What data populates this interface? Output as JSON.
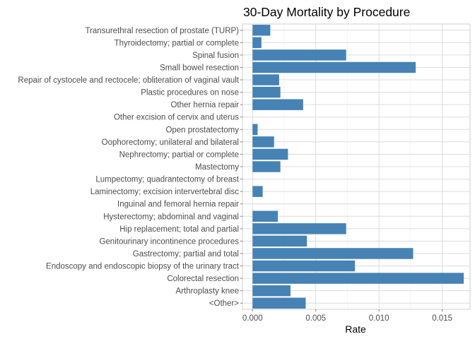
{
  "chart_data": {
    "type": "bar",
    "orientation": "horizontal",
    "title": "30-Day Mortality by Procedure",
    "xlabel": "Rate",
    "ylabel": "",
    "xlim": [
      -0.0008,
      0.0172
    ],
    "x_ticks": [
      0.0,
      0.005,
      0.01,
      0.015
    ],
    "x_tick_labels": [
      "0.000",
      "0.005",
      "0.010",
      "0.015"
    ],
    "grid": true,
    "bar_color": "#4682B4",
    "categories": [
      "Transurethral resection of prostate (TURP)",
      "Thyroidectomy; partial or complete",
      "Spinal fusion",
      "Small bowel resection",
      "Repair of cystocele and rectocele; obliteration of vaginal vault",
      "Plastic procedures on nose",
      "Other hernia repair",
      "Other excision of cervix and uterus",
      "Open prostatectomy",
      "Oophorectomy; unilateral and bilateral",
      "Nephrectomy; partial or complete",
      "Mastectomy",
      "Lumpectomy; quadrantectomy of breast",
      "Laminectomy; excision intervertebral disc",
      "Inguinal and femoral hernia repair",
      "Hysterectomy; abdominal and vaginal",
      "Hip replacement; total and partial",
      "Genitourinary incontinence procedures",
      "Gastrectomy; partial and total",
      "Endoscopy and endoscopic biopsy of the urinary tract",
      "Colorectal resection",
      "Arthroplasty knee",
      "<Other>"
    ],
    "values": [
      0.0014,
      0.0007,
      0.0074,
      0.0129,
      0.0021,
      0.0022,
      0.004,
      0.0,
      0.0004,
      0.0017,
      0.0028,
      0.0022,
      0.0,
      0.0008,
      0.0,
      0.002,
      0.0074,
      0.0043,
      0.0127,
      0.0081,
      0.0167,
      0.003,
      0.0042
    ]
  }
}
